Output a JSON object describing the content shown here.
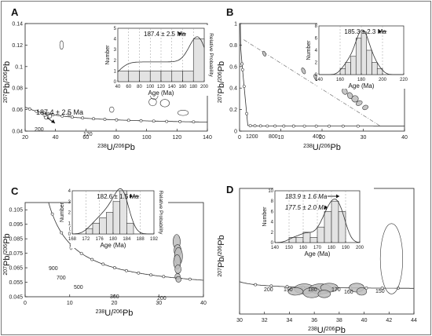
{
  "chart_data": [
    {
      "panel": "A",
      "type": "scatter",
      "subtype": "Tera-Wasserburg concordia with error ellipses",
      "xlabel_parts": [
        "238",
        "U/",
        "206",
        "Pb"
      ],
      "ylabel_parts": [
        "207",
        "Pb/",
        "206",
        "Pb"
      ],
      "xlim": [
        20,
        140
      ],
      "ylim": [
        0.04,
        0.14
      ],
      "xticks": [
        20,
        40,
        60,
        80,
        100,
        120,
        140
      ],
      "yticks": [
        0.04,
        0.06,
        0.08,
        0.1,
        0.12,
        0.14
      ],
      "concordia_age_labels_ma": [
        "200",
        "120"
      ],
      "annotation": "187.4 ± 2.5 Ma",
      "ellipses": [
        {
          "x": 34,
          "y": 0.053,
          "rx": 1.5,
          "ry": 0.002
        },
        {
          "x": 36,
          "y": 0.054,
          "rx": 1.5,
          "ry": 0.002
        },
        {
          "x": 35,
          "y": 0.056,
          "rx": 1.2,
          "ry": 0.0015
        },
        {
          "x": 33,
          "y": 0.055,
          "rx": 1.2,
          "ry": 0.0015
        },
        {
          "x": 44,
          "y": 0.12,
          "rx": 1.2,
          "ry": 0.004
        },
        {
          "x": 49,
          "y": 0.056,
          "rx": 1.0,
          "ry": 0.002
        },
        {
          "x": 77,
          "y": 0.06,
          "rx": 1.5,
          "ry": 0.0025
        },
        {
          "x": 104,
          "y": 0.067,
          "rx": 2.5,
          "ry": 0.0035
        },
        {
          "x": 105,
          "y": 0.073,
          "rx": 2.5,
          "ry": 0.0035
        },
        {
          "x": 112,
          "y": 0.066,
          "rx": 3.0,
          "ry": 0.0035
        },
        {
          "x": 124,
          "y": 0.057,
          "rx": 3.5,
          "ry": 0.0025
        }
      ],
      "inset": {
        "type": "histogram",
        "xlabel": "Age (Ma)",
        "ylabel": "Number",
        "y2label": "Relative Probability",
        "xlim": [
          40,
          200
        ],
        "xticks": [
          40,
          60,
          80,
          100,
          120,
          140,
          160,
          180,
          200
        ],
        "ylim": [
          0,
          5
        ],
        "yticks": [
          0,
          1,
          2,
          3,
          4,
          5
        ],
        "annotation": "187.4 ± 2.5 Ma",
        "bin_edges": [
          40,
          60,
          80,
          100,
          120,
          140,
          160,
          180,
          200
        ],
        "counts": [
          1,
          1,
          1,
          1,
          1,
          1,
          1,
          4
        ]
      }
    },
    {
      "panel": "B",
      "type": "scatter",
      "subtype": "Tera-Wasserburg concordia with error ellipses",
      "xlabel_parts": [
        "238",
        "U/",
        "206",
        "Pb"
      ],
      "ylabel_parts": [
        "207",
        "Pb/",
        "206",
        "Pb"
      ],
      "xlim": [
        0,
        40
      ],
      "ylim": [
        0,
        1.0
      ],
      "xticks": [
        0,
        10,
        20,
        30,
        40
      ],
      "yticks": [
        0,
        0.2,
        0.4,
        0.6,
        0.8,
        1.0
      ],
      "concordia_age_labels_ma": [
        "1200",
        "800",
        "400"
      ],
      "ellipses": [
        {
          "x": 6,
          "y": 0.72,
          "rx": 0.35,
          "ry": 0.025
        },
        {
          "x": 15.5,
          "y": 0.56,
          "rx": 0.4,
          "ry": 0.03
        },
        {
          "x": 18.5,
          "y": 0.5,
          "rx": 0.4,
          "ry": 0.03
        },
        {
          "x": 20,
          "y": 0.48,
          "rx": 0.4,
          "ry": 0.03
        },
        {
          "x": 22.5,
          "y": 0.43,
          "rx": 0.5,
          "ry": 0.03
        },
        {
          "x": 25.5,
          "y": 0.37,
          "rx": 0.6,
          "ry": 0.03
        },
        {
          "x": 26.8,
          "y": 0.33,
          "rx": 0.6,
          "ry": 0.03
        },
        {
          "x": 28,
          "y": 0.3,
          "rx": 0.8,
          "ry": 0.03
        },
        {
          "x": 29,
          "y": 0.26,
          "rx": 0.8,
          "ry": 0.02
        },
        {
          "x": 30.5,
          "y": 0.22,
          "rx": 0.7,
          "ry": 0.02
        }
      ],
      "inset": {
        "type": "histogram",
        "xlabel": "Age (Ma)",
        "ylabel": "Number",
        "xlim": [
          140,
          220
        ],
        "xticks": [
          140,
          160,
          180,
          200,
          220
        ],
        "ylim": [
          0,
          8
        ],
        "yticks": [
          0,
          2,
          4,
          6,
          8
        ],
        "annotation": "185.3 ± 2.3 Ma",
        "bin_edges": [
          160,
          165,
          170,
          175,
          180,
          185,
          190,
          195,
          200
        ],
        "counts": [
          1,
          2,
          3,
          6,
          7,
          4,
          2,
          1
        ]
      }
    },
    {
      "panel": "C",
      "type": "scatter",
      "subtype": "Tera-Wasserburg concordia with error ellipses",
      "xlabel_parts": [
        "238",
        "U/",
        "206",
        "Pb"
      ],
      "ylabel_parts": [
        "207",
        "Pb/",
        "206",
        "Pb"
      ],
      "xlim": [
        0,
        40
      ],
      "ylim": [
        0.045,
        0.11
      ],
      "xticks": [
        0,
        10,
        20,
        30,
        40
      ],
      "yticks": [
        0.045,
        0.055,
        0.065,
        0.075,
        0.085,
        0.095,
        0.105
      ],
      "concordia_age_labels_ma": [
        "900",
        "700",
        "500",
        "300",
        "200"
      ],
      "ellipses": [
        {
          "x": 10.3,
          "y": 0.079,
          "rx": 0.2,
          "ry": 0.0015
        },
        {
          "x": 10.2,
          "y": 0.092,
          "rx": 0.2,
          "ry": 0.0015
        },
        {
          "x": 34,
          "y": 0.083,
          "rx": 0.8,
          "ry": 0.005
        },
        {
          "x": 34.2,
          "y": 0.077,
          "rx": 0.8,
          "ry": 0.004
        },
        {
          "x": 34.4,
          "y": 0.073,
          "rx": 0.9,
          "ry": 0.006
        },
        {
          "x": 34.1,
          "y": 0.069,
          "rx": 0.8,
          "ry": 0.005
        },
        {
          "x": 34.3,
          "y": 0.064,
          "rx": 0.7,
          "ry": 0.003
        },
        {
          "x": 34.2,
          "y": 0.059,
          "rx": 0.6,
          "ry": 0.002
        },
        {
          "x": 34.4,
          "y": 0.057,
          "rx": 0.6,
          "ry": 0.002
        }
      ],
      "inset": {
        "type": "histogram",
        "xlabel": "Age (Ma)",
        "ylabel": "Number",
        "y2label": "Relative Probability",
        "xlim": [
          168,
          192
        ],
        "xticks": [
          168,
          172,
          176,
          180,
          184,
          188,
          192
        ],
        "ylim": [
          0,
          4
        ],
        "yticks": [
          0,
          1,
          2,
          3,
          4
        ],
        "annotation": "182.6 ± 1.5 Ma",
        "bin_edges": [
          172,
          174,
          176,
          178,
          180,
          182,
          184,
          186
        ],
        "counts": [
          0.5,
          1,
          1.5,
          2,
          3,
          4,
          1
        ]
      }
    },
    {
      "panel": "D",
      "type": "scatter",
      "subtype": "Tera-Wasserburg concordia with error ellipses",
      "xlabel_parts": [
        "238",
        "U/",
        "206",
        "Pb"
      ],
      "ylabel_parts": [
        "207",
        "Pb/",
        "206",
        "Pb"
      ],
      "xlim": [
        30,
        44
      ],
      "ylim": [
        0.03,
        0.13
      ],
      "xticks": [
        30,
        32,
        34,
        36,
        38,
        40,
        42,
        44
      ],
      "concordia_age_labels_ma": [
        "200",
        "190",
        "180",
        "170",
        "160",
        "150"
      ],
      "ellipses": [
        {
          "x": 35.2,
          "y": 0.05,
          "rx": 0.8,
          "ry": 0.004
        },
        {
          "x": 34.5,
          "y": 0.048,
          "rx": 0.6,
          "ry": 0.003
        },
        {
          "x": 36.5,
          "y": 0.05,
          "rx": 0.9,
          "ry": 0.004
        },
        {
          "x": 35.8,
          "y": 0.047,
          "rx": 0.7,
          "ry": 0.004
        },
        {
          "x": 37.2,
          "y": 0.051,
          "rx": 0.7,
          "ry": 0.0035
        },
        {
          "x": 36.8,
          "y": 0.046,
          "rx": 0.5,
          "ry": 0.003
        },
        {
          "x": 39.4,
          "y": 0.051,
          "rx": 0.6,
          "ry": 0.0035
        },
        {
          "x": 39.8,
          "y": 0.048,
          "rx": 0.4,
          "ry": 0.003
        },
        {
          "x": 42.2,
          "y": 0.074,
          "rx": 0.9,
          "ry": 0.028
        }
      ],
      "inset": {
        "type": "histogram",
        "xlabel": "Age (Ma)",
        "ylabel": "Number",
        "xlim": [
          140,
          200
        ],
        "xticks": [
          140,
          150,
          160,
          170,
          180,
          190,
          200
        ],
        "ylim": [
          0,
          10
        ],
        "yticks": [
          0,
          2,
          4,
          6,
          8,
          10
        ],
        "annotations": [
          "183.9 ± 1.6 Ma",
          "177.5 ± 2.0 Ma"
        ],
        "bin_edges": [
          150,
          155,
          160,
          165,
          170,
          175,
          180,
          185,
          190
        ],
        "counts": [
          1,
          1,
          2,
          1,
          3,
          6,
          8,
          6
        ]
      }
    }
  ]
}
